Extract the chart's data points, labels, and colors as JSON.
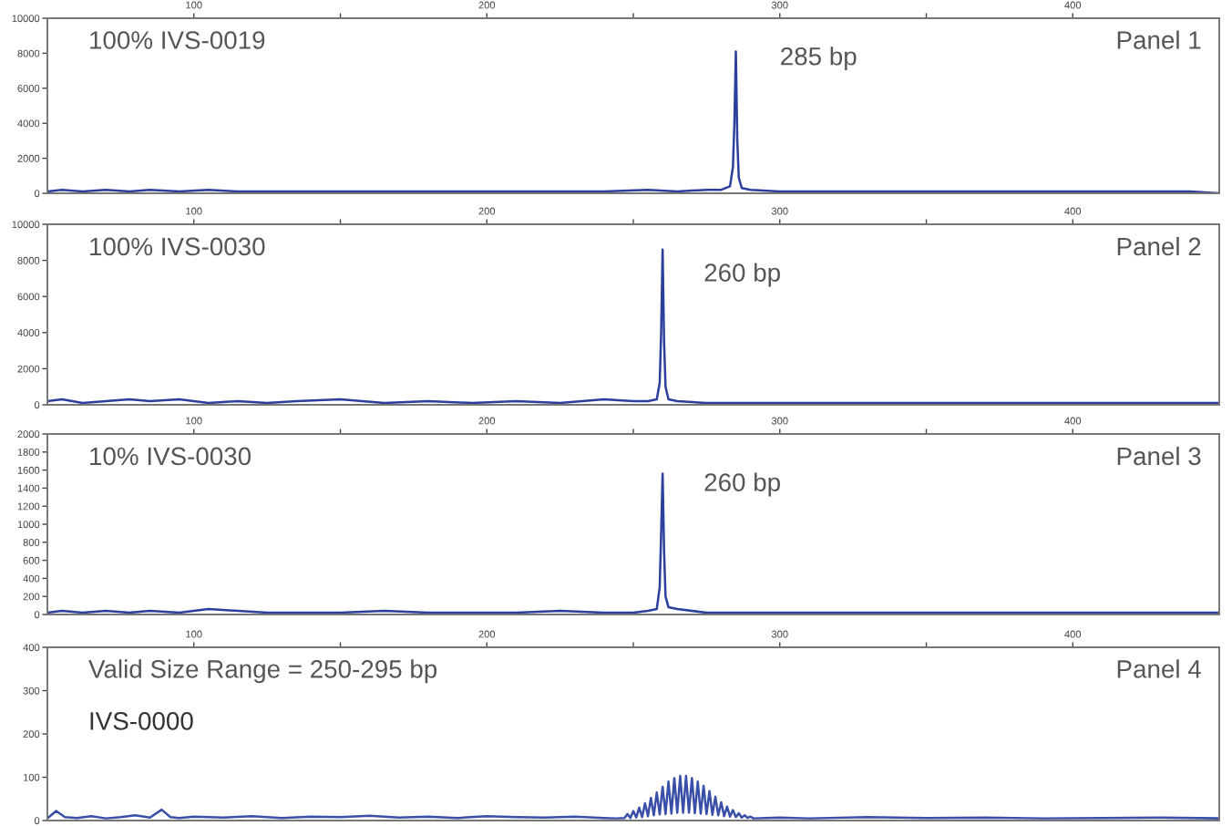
{
  "chart_data": [
    {
      "type": "line",
      "title": "100% IVS-0019",
      "annotations": [
        "Panel 1",
        "285 bp"
      ],
      "xlim": [
        50,
        450
      ],
      "xticks": [
        100,
        {
          "value": 150,
          "label": null
        },
        200,
        {
          "value": 250,
          "label": null
        },
        300,
        {
          "value": 350,
          "label": null
        },
        400
      ],
      "ylim": [
        0,
        10000
      ],
      "yticks": [
        0,
        2000,
        4000,
        6000,
        8000,
        10000
      ],
      "grid": false,
      "legend": false,
      "series": [
        {
          "color": "#2b3f9c",
          "x": [
            50,
            55,
            62,
            70,
            78,
            85,
            95,
            105,
            115,
            125,
            135,
            150,
            165,
            180,
            195,
            210,
            225,
            240,
            255,
            265,
            275,
            280,
            283,
            284,
            284.5,
            285,
            285.5,
            286,
            287,
            290,
            300,
            320,
            340,
            360,
            380,
            400,
            420,
            440,
            450
          ],
          "values": [
            100,
            200,
            100,
            200,
            100,
            200,
            100,
            200,
            100,
            100,
            100,
            100,
            100,
            100,
            100,
            100,
            100,
            100,
            200,
            100,
            200,
            200,
            400,
            1500,
            4000,
            8100,
            3000,
            900,
            300,
            200,
            100,
            100,
            100,
            100,
            100,
            100,
            100,
            100,
            0
          ]
        }
      ]
    },
    {
      "type": "line",
      "title": "100% IVS-0030",
      "annotations": [
        "Panel 2",
        "260 bp"
      ],
      "xlim": [
        50,
        450
      ],
      "xticks": [
        100,
        {
          "value": 150,
          "label": null
        },
        200,
        {
          "value": 250,
          "label": null
        },
        300,
        {
          "value": 350,
          "label": null
        },
        400
      ],
      "ylim": [
        0,
        10000
      ],
      "yticks": [
        0,
        2000,
        4000,
        6000,
        8000,
        10000
      ],
      "grid": false,
      "legend": false,
      "series": [
        {
          "color": "#2b3f9c",
          "x": [
            50,
            55,
            62,
            70,
            78,
            85,
            95,
            105,
            115,
            125,
            135,
            150,
            165,
            180,
            195,
            210,
            225,
            240,
            250,
            255,
            258,
            259,
            259.5,
            260,
            260.5,
            261,
            262,
            265,
            275,
            290,
            310,
            330,
            350,
            370,
            390,
            410,
            430,
            450
          ],
          "values": [
            200,
            300,
            100,
            200,
            300,
            200,
            300,
            100,
            200,
            100,
            200,
            300,
            100,
            200,
            100,
            200,
            100,
            300,
            200,
            200,
            300,
            1200,
            4000,
            8600,
            3500,
            1000,
            300,
            200,
            100,
            100,
            100,
            100,
            100,
            100,
            100,
            100,
            100,
            100
          ]
        }
      ]
    },
    {
      "type": "line",
      "title": "10% IVS-0030",
      "annotations": [
        "Panel 3",
        "260 bp"
      ],
      "xlim": [
        50,
        450
      ],
      "xticks": [
        100,
        {
          "value": 150,
          "label": null
        },
        200,
        {
          "value": 250,
          "label": null
        },
        300,
        {
          "value": 350,
          "label": null
        },
        400
      ],
      "ylim": [
        0,
        2000
      ],
      "yticks": [
        0,
        200,
        400,
        600,
        800,
        1000,
        1200,
        1400,
        1600,
        1800,
        2000
      ],
      "grid": false,
      "legend": false,
      "series": [
        {
          "color": "#2b3f9c",
          "x": [
            50,
            55,
            62,
            70,
            78,
            85,
            95,
            105,
            115,
            125,
            135,
            150,
            165,
            180,
            195,
            210,
            225,
            240,
            250,
            255,
            258,
            259,
            259.5,
            260,
            260.5,
            261,
            262,
            265,
            275,
            290,
            310,
            330,
            350,
            370,
            390,
            410,
            430,
            450
          ],
          "values": [
            20,
            40,
            20,
            40,
            20,
            40,
            20,
            60,
            40,
            20,
            20,
            20,
            40,
            20,
            20,
            20,
            40,
            20,
            20,
            40,
            60,
            300,
            900,
            1560,
            700,
            200,
            80,
            60,
            20,
            20,
            20,
            20,
            20,
            20,
            20,
            20,
            20,
            20
          ]
        }
      ]
    },
    {
      "type": "line",
      "title": "Valid Size Range = 250-295 bp",
      "subtitle": "IVS-0000",
      "annotations": [
        "Panel 4"
      ],
      "xlim": [
        50,
        450
      ],
      "xticks": [
        100,
        {
          "value": 150,
          "label": null
        },
        200,
        {
          "value": 250,
          "label": null
        },
        300,
        {
          "value": 350,
          "label": null
        },
        400
      ],
      "ylim": [
        0,
        400
      ],
      "yticks": [
        0,
        100,
        200,
        300,
        400
      ],
      "grid": false,
      "legend": false,
      "series": [
        {
          "color": "#3a4fa8",
          "x": [
            50,
            53,
            56,
            60,
            65,
            70,
            75,
            80,
            85,
            89,
            92,
            95,
            100,
            110,
            120,
            130,
            140,
            150,
            160,
            170,
            180,
            190,
            200,
            210,
            220,
            230,
            240,
            244,
            247,
            248,
            249,
            250,
            251,
            252,
            253,
            254,
            255,
            256,
            257,
            258,
            259,
            260,
            261,
            262,
            263,
            264,
            265,
            266,
            267,
            268,
            269,
            270,
            271,
            272,
            273,
            274,
            275,
            276,
            277,
            278,
            279,
            280,
            281,
            282,
            283,
            284,
            285,
            286,
            287,
            288,
            289,
            290,
            291,
            295,
            300,
            310,
            330,
            350,
            370,
            390,
            410,
            430,
            450
          ],
          "values": [
            5,
            22,
            8,
            6,
            10,
            5,
            8,
            12,
            7,
            25,
            8,
            6,
            9,
            7,
            10,
            6,
            9,
            8,
            11,
            7,
            9,
            6,
            10,
            8,
            7,
            9,
            6,
            5,
            6,
            15,
            6,
            22,
            7,
            30,
            8,
            40,
            10,
            52,
            12,
            65,
            14,
            78,
            15,
            90,
            16,
            98,
            18,
            103,
            18,
            103,
            18,
            98,
            17,
            90,
            16,
            80,
            15,
            68,
            13,
            55,
            12,
            42,
            10,
            32,
            9,
            24,
            8,
            17,
            7,
            12,
            6,
            9,
            5,
            6,
            7,
            5,
            8,
            6,
            7,
            5,
            6,
            7,
            5
          ]
        }
      ]
    }
  ]
}
